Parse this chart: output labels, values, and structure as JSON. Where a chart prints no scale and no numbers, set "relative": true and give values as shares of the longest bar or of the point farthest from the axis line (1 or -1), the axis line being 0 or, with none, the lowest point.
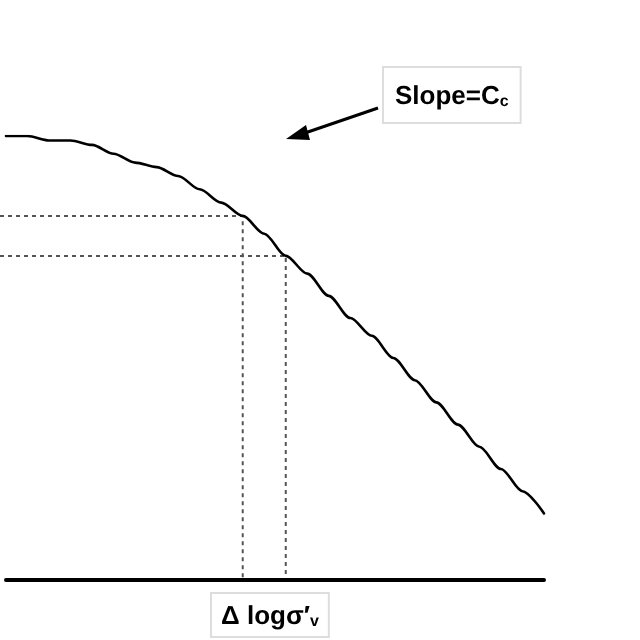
{
  "chart_data": {
    "type": "line",
    "relative": true,
    "marker": "none",
    "line_style": "solid",
    "categories": [
      null,
      null,
      null,
      null,
      null,
      null,
      null,
      null,
      null,
      null,
      null,
      null,
      null,
      null,
      null,
      null,
      null,
      null,
      null,
      null,
      null,
      null,
      null,
      null,
      null,
      null
    ],
    "series": [
      {
        "color": "#000000",
        "values": [
          1.0,
          1.0,
          0.99,
          0.99,
          0.98,
          0.96,
          0.94,
          0.93,
          0.91,
          0.88,
          0.85,
          0.82,
          0.78,
          0.73,
          0.69,
          0.64,
          0.59,
          0.55,
          0.5,
          0.45,
          0.4,
          0.35,
          0.3,
          0.25,
          0.2,
          0.15
        ]
      }
    ],
    "ref_lines": [
      {
        "axis": "y",
        "value": 0.82,
        "line_style": "dotted",
        "color": "#555555"
      },
      {
        "axis": "y",
        "value": 0.73,
        "line_style": "dotted",
        "color": "#555555"
      }
    ],
    "annotations": [
      "Slope=C$_{c}$",
      "Δ logσ′$_{v}$"
    ]
  }
}
